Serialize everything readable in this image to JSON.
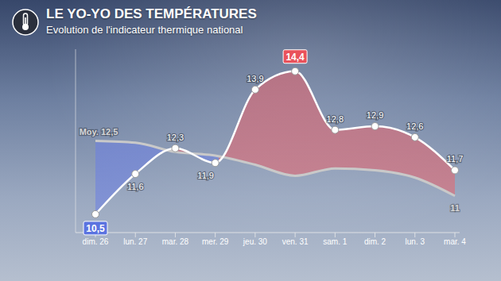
{
  "chart_data": {
    "type": "area",
    "title": "LE YO-YO DES TEMPÉRATURES",
    "subtitle": "Evolution de l'indicateur thermique national",
    "categories": [
      "dim. 26",
      "lun. 27",
      "mar. 28",
      "mer. 29",
      "jeu. 30",
      "ven. 31",
      "sam. 1",
      "dim. 2",
      "lun. 3",
      "mar. 4"
    ],
    "series": [
      {
        "color": "#ffffff",
        "values": [
          10.5,
          11.6,
          12.3,
          11.9,
          13.9,
          14.4,
          12.8,
          12.9,
          12.6,
          11.7
        ],
        "value_labels": [
          "10,5",
          "11,6",
          "12,3",
          "11,9",
          "13,9",
          "14,4",
          "12,8",
          "12,9",
          "12,6",
          "11,7"
        ],
        "marker": "circle"
      },
      {
        "color": "#c9c9c9",
        "values": [
          12.5,
          12.45,
          12.2,
          12.1,
          11.85,
          11.55,
          11.75,
          11.7,
          11.5,
          11.0
        ],
        "value_labels": [
          "Moy. 12,5",
          null,
          null,
          null,
          null,
          null,
          null,
          null,
          null,
          "11"
        ]
      }
    ],
    "ylim": [
      10,
      15
    ],
    "yticks": [],
    "grid": false,
    "data_labels": true,
    "tick_labels": "x"
  }
}
